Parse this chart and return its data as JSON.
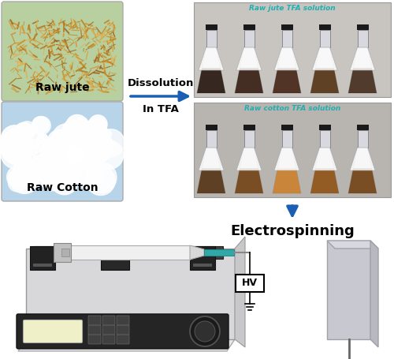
{
  "bg_color": "#ffffff",
  "arrow_color": "#1a5fb4",
  "dissolution_text_1": "Dissolution",
  "dissolution_text_2": "In TFA",
  "electrospinning_text": "Electrospinning",
  "hv_text": "HV",
  "raw_jute_text": "Raw jute",
  "raw_cotton_text": "Raw Cotton",
  "raw_jute_tfa_text": "Raw jute TFA solution",
  "raw_cotton_tfa_text": "Raw cotton TFA solution",
  "jute_fiber_colors": [
    "#c8922a",
    "#b07820",
    "#d4a040",
    "#a06018",
    "#e0b050",
    "#c0801a",
    "#d89030"
  ],
  "cotton_bg": "#b8d8e8",
  "jute_bg_color": "#b8c890",
  "pump_body_light": "#e8e8ea",
  "pump_body_mid": "#d0d0d2",
  "pump_dark": "#282828",
  "pump_medium": "#505050",
  "needle_teal": "#30a8a8",
  "screen_color": "#f0f0c8",
  "collector_color": "#c8c8d0",
  "collector_edge": "#a0a0a8",
  "label_fontsize": 9,
  "hv_fontsize": 9,
  "electro_fontsize": 13
}
